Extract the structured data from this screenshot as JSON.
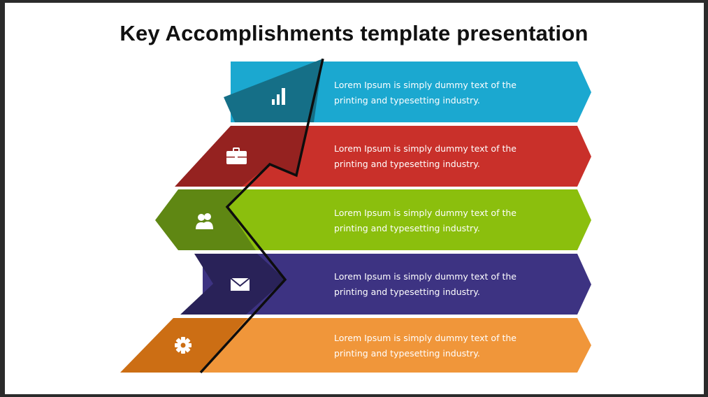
{
  "title": "Key Accomplishments template presentation",
  "items": [
    {
      "text": "Lorem Ipsum is simply dummy text of the printing and typesetting industry.",
      "icon": "bar-chart-icon",
      "color": "#1ba8d0",
      "dark": "#156f87"
    },
    {
      "text": "Lorem Ipsum is simply dummy text of the printing and typesetting industry.",
      "icon": "briefcase-icon",
      "color": "#c9302a",
      "dark": "#952220"
    },
    {
      "text": "Lorem Ipsum is simply dummy text of the printing and typesetting industry.",
      "icon": "users-icon",
      "color": "#8bbf0d",
      "dark": "#5f8713"
    },
    {
      "text": "Lorem Ipsum is simply dummy text of the printing and typesetting industry.",
      "icon": "envelope-icon",
      "color": "#3d3382",
      "dark": "#292258"
    },
    {
      "text": "Lorem Ipsum is simply dummy text of the printing and typesetting industry.",
      "icon": "gear-icon",
      "color": "#f0963a",
      "dark": "#cc6e14"
    }
  ]
}
